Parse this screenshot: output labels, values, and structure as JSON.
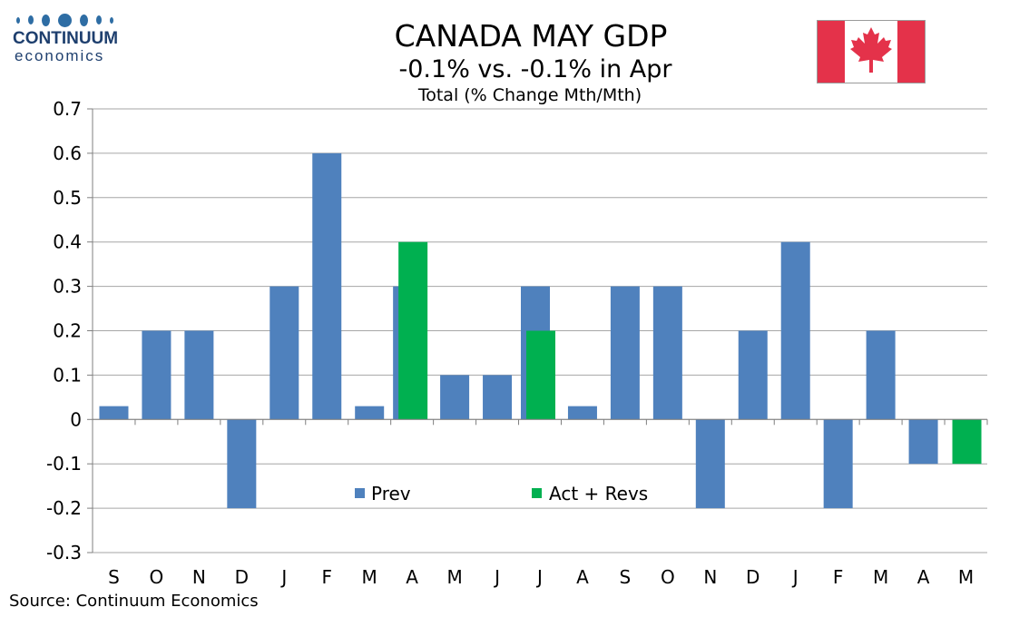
{
  "logo": {
    "word1": "CONTINUUM",
    "word2": "economics"
  },
  "title": "CANADA MAY GDP",
  "subtitle": "-0.1% vs. -0.1% in Apr",
  "chart_subtitle": "Total (% Change Mth/Mth)",
  "source": "Source: Continuum Economics",
  "flag_icon": "canada-flag-icon",
  "colors": {
    "prev": "#4f81bd",
    "act": "#00b050",
    "flag_red": "#e4324a"
  },
  "chart_data": {
    "type": "bar",
    "title": "CANADA MAY GDP",
    "subtitle": "Total (% Change Mth/Mth)",
    "categories": [
      "S",
      "O",
      "N",
      "D",
      "J",
      "F",
      "M",
      "A",
      "M",
      "J",
      "J",
      "A",
      "S",
      "O",
      "N",
      "D",
      "J",
      "F",
      "M",
      "A",
      "M"
    ],
    "series": [
      {
        "name": "Prev",
        "color": "#4f81bd",
        "values": [
          0.03,
          0.2,
          0.2,
          -0.2,
          0.3,
          0.6,
          0.03,
          0.3,
          0.1,
          0.1,
          0.3,
          0.03,
          0.3,
          0.3,
          -0.2,
          0.2,
          0.4,
          -0.2,
          0.2,
          -0.1,
          null
        ]
      },
      {
        "name": "Act + Revs",
        "color": "#00b050",
        "values": [
          null,
          null,
          null,
          null,
          null,
          null,
          null,
          0.4,
          null,
          null,
          0.2,
          null,
          null,
          null,
          null,
          null,
          null,
          null,
          null,
          null,
          -0.1
        ]
      }
    ],
    "ylim": [
      -0.3,
      0.7
    ],
    "yticks": [
      "-0.3",
      "-0.2",
      "-0.1",
      "0",
      "0.1",
      "0.2",
      "0.3",
      "0.4",
      "0.5",
      "0.6",
      "0.7"
    ],
    "grid": true,
    "legend": "inside-bottom-center"
  }
}
